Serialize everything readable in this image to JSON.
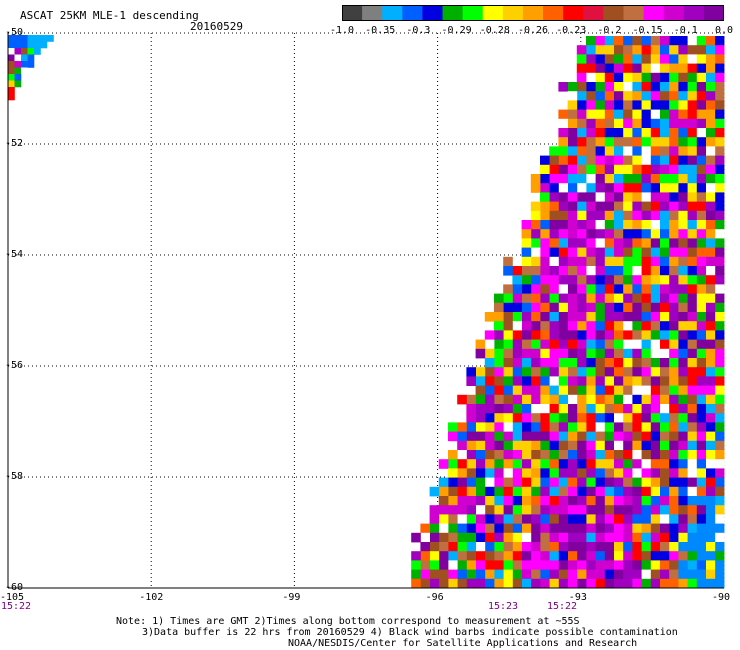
{
  "header": {
    "title": "ASCAT 25KM MLE-1 descending",
    "date": "20160529"
  },
  "colorbar": {
    "colors": [
      "#404040",
      "#7f7f7f",
      "#00b0ff",
      "#0060ff",
      "#0000e0",
      "#00b000",
      "#00ff00",
      "#ffff00",
      "#ffd000",
      "#ffa000",
      "#ff6000",
      "#ff0000",
      "#e01040",
      "#a05020",
      "#c07040",
      "#ff00ff",
      "#d000d0",
      "#a000c0",
      "#8000a0"
    ],
    "tick_labels": [
      "-1.0",
      "-0.35",
      "-0.3",
      "-0.29",
      "-0.28",
      "-0.26",
      "-0.23",
      "-0.2",
      "-0.15",
      "-0.1",
      "0.0"
    ]
  },
  "axes": {
    "x_ticks": [
      "-105",
      "-102",
      "-99",
      "-96",
      "-93",
      "-90"
    ],
    "y_ticks": [
      "-50",
      "-52",
      "-54",
      "-56",
      "-58",
      "-60"
    ],
    "grid": true
  },
  "times": [
    "15:22",
    "15:23",
    "15:22"
  ],
  "notes": [
    "Note: 1) Times are GMT 2)Times along bottom correspond to measurement at ~55S",
    "3)Data buffer is 22 hrs from 20160529 4) Black wind barbs indicate possible contamination",
    "NOAA/NESDIS/Center for Satellite Applications and Research"
  ],
  "palette": [
    "#8000a0",
    "#a000c0",
    "#d000d0",
    "#ff00ff",
    "#ff0000",
    "#ff6000",
    "#ffa000",
    "#ffd000",
    "#ffff00",
    "#00b000",
    "#00ff00",
    "#0000e0",
    "#0060ff",
    "#00b0ff",
    "#a05020",
    "#c07040",
    "#ffffff"
  ]
}
